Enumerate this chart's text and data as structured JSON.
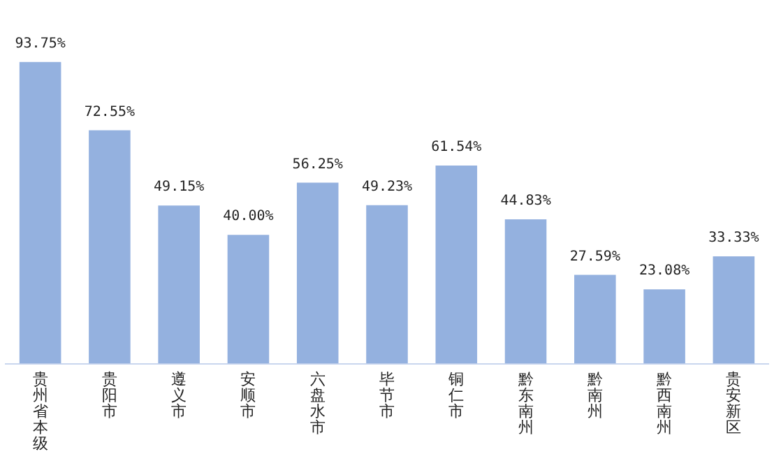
{
  "chart_data": {
    "type": "bar",
    "categories": [
      "贵州省本级",
      "贵阳市",
      "遵义市",
      "安顺市",
      "六盘水市",
      "毕节市",
      "铜仁市",
      "黔东南州",
      "黔南州",
      "黔西南州",
      "贵安新区"
    ],
    "values": [
      93.75,
      72.55,
      49.15,
      40.0,
      56.25,
      49.23,
      61.54,
      44.83,
      27.59,
      23.08,
      33.33
    ],
    "value_labels": [
      "93.75%",
      "72.55%",
      "49.15%",
      "40.00%",
      "56.25%",
      "49.23%",
      "61.54%",
      "44.83%",
      "27.59%",
      "23.08%",
      "33.33%"
    ],
    "color": "#94b1df",
    "grid": false,
    "legend": false
  }
}
